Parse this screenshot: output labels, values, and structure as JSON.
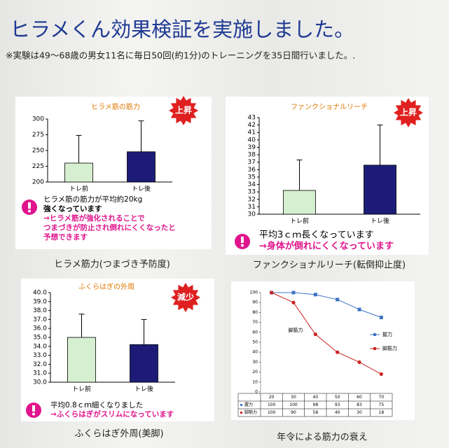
{
  "header": {
    "title": "ヒラメくん効果検証を実施しました。",
    "subtitle": "※実験は49～68歳の男女11名に毎日50回(約1分)のトレーニングを35日間行いました。."
  },
  "chart_data": [
    {
      "type": "bar",
      "title": "ヒラメ筋の筋力",
      "badge": "上昇",
      "categories": [
        "トレ前",
        "トレ後"
      ],
      "values": [
        230,
        248
      ],
      "errors": [
        44,
        49
      ],
      "colors": [
        "#d6efd0",
        "#1c1c78"
      ],
      "ylim": [
        200,
        300
      ],
      "yticks": [
        200,
        225,
        250,
        275,
        300
      ],
      "notes": [
        "ヒラメ筋の筋力が平均約20kg",
        "強くなっています",
        "→ヒラメ筋が強化されることで",
        "つまづきが防止され倒れにくくなったと",
        "予想できます"
      ],
      "note_colors": [
        "#000",
        "#000",
        "#e0148c",
        "#e0148c",
        "#e0148c"
      ],
      "caption": "ヒラメ筋力(つまづき予防度)"
    },
    {
      "type": "bar",
      "title": "ファンクショナルリーチ",
      "badge": "上昇",
      "categories": [
        "トレ前",
        "トレ後"
      ],
      "values": [
        33.2,
        36.6
      ],
      "errors": [
        4.1,
        5.4
      ],
      "colors": [
        "#d6efd0",
        "#1c1c78"
      ],
      "ylim": [
        30,
        43
      ],
      "yticks": [
        30,
        31,
        32,
        33,
        34,
        35,
        36,
        37,
        38,
        39,
        40,
        41,
        42,
        43
      ],
      "notes": [
        "平均3ｃｍ長くなっています",
        "→身体が倒れにくくなっています"
      ],
      "note_colors": [
        "#000",
        "#e0148c"
      ],
      "caption": "ファンクショナルリーチ(転倒抑止度)"
    },
    {
      "type": "bar",
      "title": "ふくらはぎの外周",
      "badge": "減少",
      "categories": [
        "トレ前",
        "トレ後"
      ],
      "values": [
        35.0,
        34.2
      ],
      "errors": [
        2.6,
        2.8
      ],
      "colors": [
        "#d6efd0",
        "#1c1c78"
      ],
      "ylim": [
        30,
        40
      ],
      "yticks": [
        {
          "value": 30,
          "label": "30.0"
        },
        {
          "value": 31,
          "label": "31.0"
        },
        {
          "value": 32,
          "label": "32.0"
        },
        {
          "value": 33,
          "label": "33.0"
        },
        {
          "value": 34,
          "label": "34.0"
        },
        {
          "value": 35,
          "label": "35.0"
        },
        {
          "value": 36,
          "label": "36.0"
        },
        {
          "value": 37,
          "label": "37.0"
        },
        {
          "value": 38,
          "label": "38.0"
        },
        {
          "value": 39,
          "label": "39.0"
        },
        {
          "value": 40,
          "label": "40.0"
        }
      ],
      "notes": [
        "平均0.8ｃｍ細くなりました",
        "→ふくらはぎがスリムになっています"
      ],
      "note_colors": [
        "#000",
        "#e0148c"
      ],
      "caption": "ふくらはぎ外周(美脚)"
    },
    {
      "type": "line",
      "categories": [
        20,
        30,
        40,
        50,
        60,
        70
      ],
      "series": [
        {
          "name": "握力",
          "color": "#3f73c4",
          "values": [
            100,
            100,
            98,
            93,
            83,
            75
          ]
        },
        {
          "name": "脚筋力",
          "color": "#cc2222",
          "values": [
            100,
            90,
            58,
            40,
            30,
            18
          ]
        }
      ],
      "ylim": [
        0,
        100
      ],
      "yticks": [
        0,
        10,
        20,
        30,
        40,
        50,
        60,
        70,
        80,
        90,
        100
      ],
      "annotation": "脚筋力",
      "caption": "年令による筋力の衰え"
    }
  ]
}
